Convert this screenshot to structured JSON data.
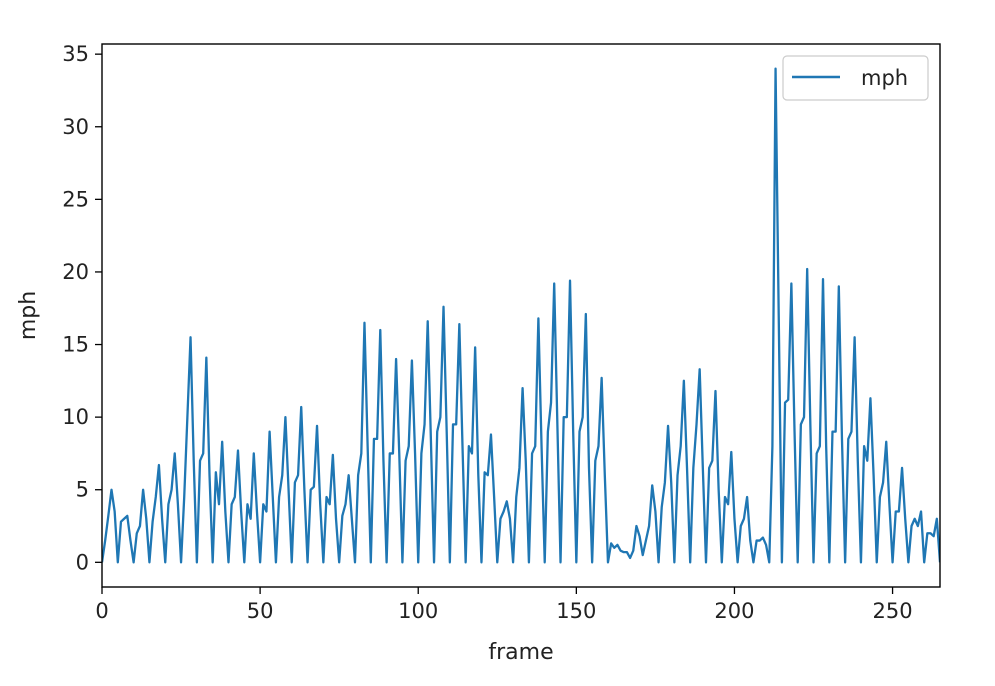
{
  "chart_data": {
    "type": "line",
    "title": "",
    "xlabel": "frame",
    "ylabel": "mph",
    "xlim": [
      0,
      265
    ],
    "ylim": [
      -1.7,
      35.7
    ],
    "xticks": [
      0,
      50,
      100,
      150,
      200,
      250
    ],
    "yticks": [
      0,
      5,
      10,
      15,
      20,
      25,
      30,
      35
    ],
    "grid": false,
    "legend": {
      "position": "top-right",
      "entries": [
        "mph"
      ]
    },
    "series": [
      {
        "name": "mph",
        "color": "#1f77b4",
        "x": [
          0,
          1,
          2,
          3,
          4,
          5,
          6,
          7,
          8,
          9,
          10,
          11,
          12,
          13,
          14,
          15,
          16,
          17,
          18,
          19,
          20,
          21,
          22,
          23,
          24,
          25,
          26,
          27,
          28,
          29,
          30,
          31,
          32,
          33,
          34,
          35,
          36,
          37,
          38,
          39,
          40,
          41,
          42,
          43,
          44,
          45,
          46,
          47,
          48,
          49,
          50,
          51,
          52,
          53,
          54,
          55,
          56,
          57,
          58,
          59,
          60,
          61,
          62,
          63,
          64,
          65,
          66,
          67,
          68,
          69,
          70,
          71,
          72,
          73,
          74,
          75,
          76,
          77,
          78,
          79,
          80,
          81,
          82,
          83,
          84,
          85,
          86,
          87,
          88,
          89,
          90,
          91,
          92,
          93,
          94,
          95,
          96,
          97,
          98,
          99,
          100,
          101,
          102,
          103,
          104,
          105,
          106,
          107,
          108,
          109,
          110,
          111,
          112,
          113,
          114,
          115,
          116,
          117,
          118,
          119,
          120,
          121,
          122,
          123,
          124,
          125,
          126,
          127,
          128,
          129,
          130,
          131,
          132,
          133,
          134,
          135,
          136,
          137,
          138,
          139,
          140,
          141,
          142,
          143,
          144,
          145,
          146,
          147,
          148,
          149,
          150,
          151,
          152,
          153,
          154,
          155,
          156,
          157,
          158,
          159,
          160,
          161,
          162,
          163,
          164,
          165,
          166,
          167,
          168,
          169,
          170,
          171,
          172,
          173,
          174,
          175,
          176,
          177,
          178,
          179,
          180,
          181,
          182,
          183,
          184,
          185,
          186,
          187,
          188,
          189,
          190,
          191,
          192,
          193,
          194,
          195,
          196,
          197,
          198,
          199,
          200,
          201,
          202,
          203,
          204,
          205,
          206,
          207,
          208,
          209,
          210,
          211,
          212,
          213,
          214,
          215,
          216,
          217,
          218,
          219,
          220,
          221,
          222,
          223,
          224,
          225,
          226,
          227,
          228,
          229,
          230,
          231,
          232,
          233,
          234,
          235,
          236,
          237,
          238,
          239,
          240,
          241,
          242,
          243,
          244,
          245,
          246,
          247,
          248,
          249,
          250,
          251,
          252,
          253,
          254,
          255,
          256,
          257,
          258,
          259,
          260,
          261,
          262,
          263,
          264,
          265
        ],
        "y": [
          0,
          1.5,
          3.2,
          5.0,
          3.5,
          0,
          2.8,
          3.0,
          3.2,
          1.5,
          0,
          2.0,
          2.5,
          5.0,
          3.0,
          0,
          2.8,
          4.5,
          6.7,
          3.0,
          0,
          4.0,
          5.0,
          7.5,
          4.0,
          0,
          4.5,
          10.0,
          15.5,
          7.0,
          0,
          7.0,
          7.5,
          14.1,
          6.0,
          0,
          6.2,
          4.0,
          8.3,
          3.5,
          0,
          4.0,
          4.5,
          7.7,
          3.5,
          0,
          4.0,
          3.0,
          7.5,
          3.5,
          0,
          4.0,
          3.5,
          9.0,
          4.5,
          0,
          4.5,
          6.0,
          10.0,
          5.0,
          0,
          5.5,
          6.0,
          10.7,
          5.0,
          0,
          5.0,
          5.2,
          9.4,
          4.0,
          0,
          4.5,
          4.0,
          7.4,
          3.0,
          0,
          3.2,
          4.0,
          6.0,
          3.0,
          0,
          6.0,
          7.5,
          16.5,
          8.0,
          0,
          8.5,
          8.5,
          16.0,
          7.0,
          0,
          7.5,
          7.5,
          14.0,
          7.5,
          0,
          7.0,
          8.0,
          13.9,
          7.5,
          0,
          7.5,
          9.5,
          16.6,
          8.5,
          0,
          9.0,
          10.0,
          17.6,
          9.0,
          0,
          9.5,
          9.5,
          16.4,
          8.0,
          0,
          8.0,
          7.5,
          14.8,
          6.0,
          0,
          6.2,
          6.0,
          8.8,
          4.5,
          0,
          3.0,
          3.5,
          4.2,
          3.0,
          0,
          4.5,
          6.5,
          12.0,
          7.0,
          0,
          7.5,
          8.0,
          16.8,
          8.0,
          0,
          9.0,
          11.0,
          19.2,
          9.5,
          0,
          10.0,
          10.0,
          19.4,
          9.0,
          0,
          9.0,
          10.0,
          17.1,
          6.5,
          0,
          7.0,
          8.0,
          12.7,
          6.0,
          0,
          1.3,
          1.0,
          1.2,
          0.8,
          0.7,
          0.7,
          0.3,
          0.8,
          2.5,
          1.8,
          0.5,
          1.5,
          2.5,
          5.3,
          3.5,
          0,
          3.8,
          5.5,
          9.4,
          5.5,
          0,
          6.0,
          8.0,
          12.5,
          6.5,
          0,
          6.5,
          9.5,
          13.3,
          6.5,
          0,
          6.5,
          7.0,
          11.8,
          5.0,
          0,
          4.5,
          4.0,
          7.6,
          3.0,
          0,
          2.5,
          3.0,
          4.5,
          1.5,
          0,
          1.5,
          1.5,
          1.7,
          1.2,
          0,
          8.0,
          34.0,
          17.0,
          0,
          11.0,
          11.2,
          19.2,
          9.0,
          0,
          9.5,
          10.0,
          20.2,
          9.5,
          0,
          7.5,
          8.0,
          19.5,
          8.0,
          0,
          9.0,
          9.0,
          19.0,
          8.5,
          0,
          8.5,
          9.0,
          15.5,
          7.0,
          0,
          8.0,
          7.0,
          11.3,
          6.0,
          0,
          4.5,
          5.5,
          8.3,
          4.0,
          0,
          3.5,
          3.5,
          6.5,
          3.0,
          0,
          2.5,
          3.0,
          2.5,
          3.5,
          0,
          2.0,
          2.0,
          1.8,
          3.0,
          0
        ]
      }
    ]
  }
}
